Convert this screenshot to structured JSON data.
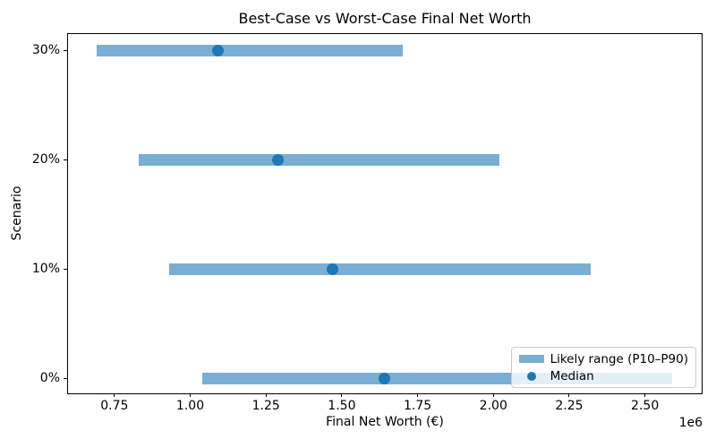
{
  "chart_data": {
    "type": "range_bar",
    "orientation": "horizontal",
    "title": "Best-Case vs Worst-Case Final Net Worth",
    "xlabel": "Final Net Worth (€)",
    "ylabel": "Scenario",
    "x_offset_label": "1e6",
    "x_unit": 1000000,
    "xlim": [
      597000,
      2687000
    ],
    "xticks": {
      "values": [
        750000,
        1000000,
        1250000,
        1500000,
        1750000,
        2000000,
        2250000,
        2500000
      ],
      "labels": [
        "0.75",
        "1.00",
        "1.25",
        "1.50",
        "1.75",
        "2.00",
        "2.25",
        "2.50"
      ]
    },
    "categories": [
      "30%",
      "20%",
      "10%",
      "0%"
    ],
    "scenarios": [
      {
        "label": "30%",
        "p10": 690000,
        "median": 1090000,
        "p90": 1700000
      },
      {
        "label": "20%",
        "p10": 830000,
        "median": 1290000,
        "p90": 2020000
      },
      {
        "label": "10%",
        "p10": 930000,
        "median": 1470000,
        "p90": 2320000
      },
      {
        "label": "0%",
        "p10": 1040000,
        "median": 1640000,
        "p90": 2590000
      }
    ],
    "legend": {
      "position": "lower right",
      "entries": [
        {
          "label": "Likely range (P10–P90)",
          "marker": "bar",
          "color": "#7aaed3"
        },
        {
          "label": "Median",
          "marker": "dot",
          "color": "#1f77b4"
        }
      ]
    },
    "colors": {
      "range_bar": "#7aaed3",
      "median_dot": "#1f77b4",
      "axis": "#000000",
      "legend_border": "#cccccc"
    },
    "grid": false
  }
}
